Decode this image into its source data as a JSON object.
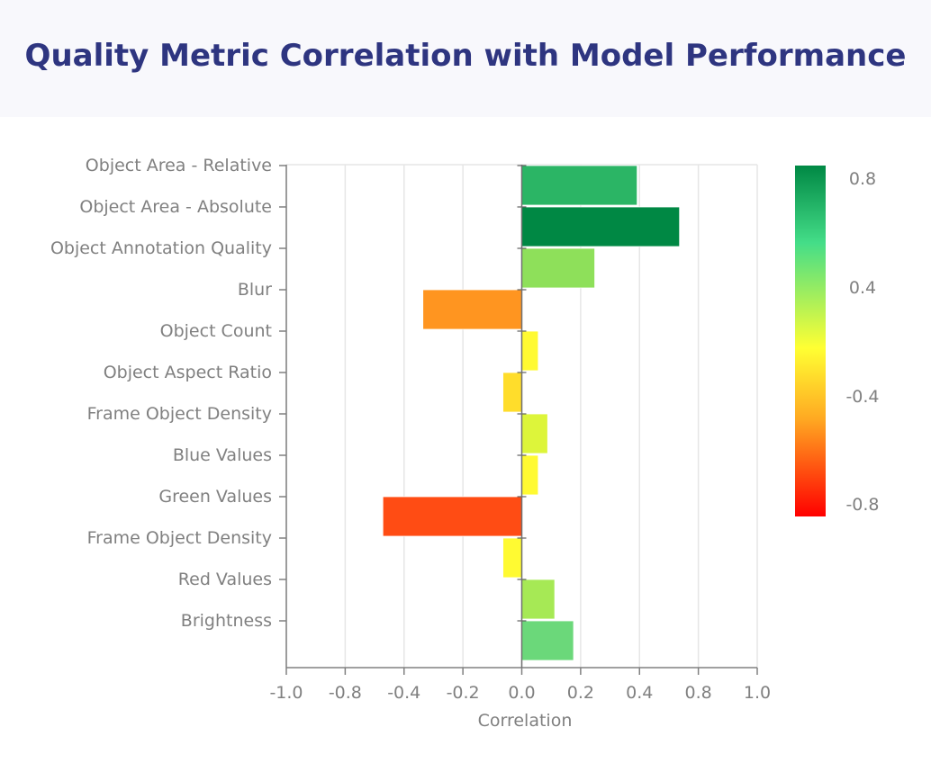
{
  "chart_data": {
    "type": "bar",
    "orientation": "horizontal",
    "title": "Quality Metric Correlation with Model Performance",
    "xlabel": "Correlation",
    "ylabel": "",
    "xlim": [
      -1.0,
      1.0
    ],
    "xticks": [
      "-1.0",
      "-0.8",
      "-0.4",
      "-0.2",
      "0.0",
      "0.2",
      "0.4",
      "0.8",
      "1.0"
    ],
    "categories": [
      "Object Area - Relative",
      "Object Area - Absolute",
      "Object Annotation Quality",
      "Blur",
      "Object Count",
      "Object Aspect Ratio",
      "Frame Object Density",
      "Blue Values",
      "Green Values",
      "Frame Object Density",
      "Red Values",
      "Brightness"
    ],
    "values": [
      0.49,
      0.67,
      0.31,
      -0.42,
      0.07,
      -0.08,
      0.11,
      0.07,
      -0.59,
      -0.08,
      0.14,
      0.22
    ],
    "colors": [
      "#2bb565",
      "#008844",
      "#8ee05a",
      "#ff9520",
      "#fffa32",
      "#ffdd2b",
      "#ddf53a",
      "#fffa32",
      "#ff4c14",
      "#fffa32",
      "#a6e955",
      "#6bd87a"
    ],
    "grid": true,
    "colorbar": {
      "tick_labels": [
        "0.8",
        "0.4",
        "-0.4",
        "-0.8"
      ],
      "colors_top_to_bottom": [
        "#008844",
        "#44dd88",
        "#ffff33",
        "#ffaa22",
        "#ff0000"
      ]
    }
  }
}
